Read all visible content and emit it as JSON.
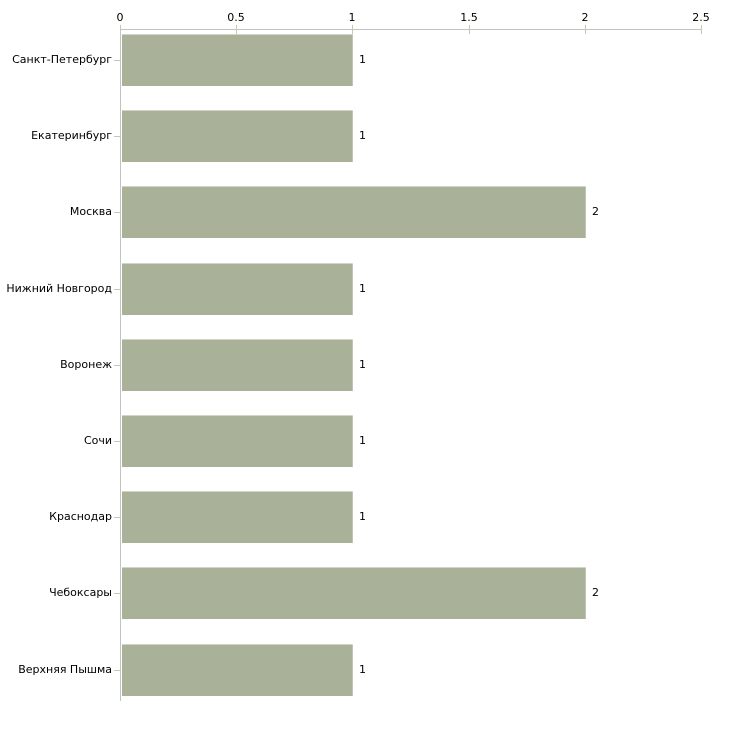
{
  "chart_data": {
    "type": "bar",
    "orientation": "horizontal",
    "title": "",
    "xlabel": "",
    "ylabel": "",
    "categories": [
      "Санкт-Петербург",
      "Екатеринбург",
      "Москва",
      "Нижний Новгород",
      "Воронеж",
      "Сочи",
      "Краснодар",
      "Чебоксары",
      "Верхняя Пышма"
    ],
    "values": [
      1,
      1,
      2,
      1,
      1,
      1,
      1,
      2,
      1
    ],
    "value_labels": [
      "1",
      "1",
      "2",
      "1",
      "1",
      "1",
      "1",
      "2",
      "1"
    ],
    "x_axis": {
      "position": "top",
      "range": [
        0,
        2.5
      ],
      "ticks": [
        0,
        0.5,
        1,
        1.5,
        2,
        2.5
      ],
      "tick_labels": [
        "0",
        "0.5",
        "1",
        "1.5",
        "2",
        "2.5"
      ]
    },
    "grid": false,
    "legend": false,
    "colors": {
      "bar_fill": "#a9b299",
      "axis_line": "#c3c3c3",
      "tick_mark": "#c6c8ab",
      "text": "#000000",
      "background": "#ffffff"
    }
  }
}
